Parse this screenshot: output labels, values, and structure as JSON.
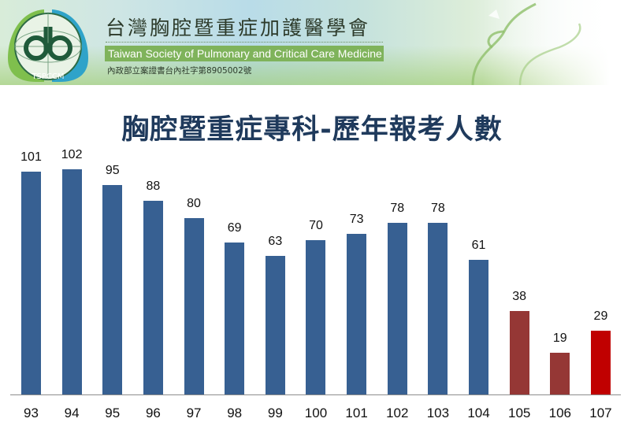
{
  "header": {
    "org_name_cn": "台灣胸腔暨重症加護醫學會",
    "org_name_en": "Taiwan Society of Pulmonary and Critical Care Medicine",
    "registration": "內政部立案證書台內社字第8905002號",
    "logo_text": "TSPCCM",
    "logo_colors": {
      "left_lung": "#7fbf4d",
      "right_lung": "#2fa3c9",
      "ring": "#1f5a3a"
    }
  },
  "chart_data": {
    "type": "bar",
    "title": "胸腔暨重症專科-歷年報考人數",
    "xlabel": "",
    "ylabel": "",
    "categories": [
      "93",
      "94",
      "95",
      "96",
      "97",
      "98",
      "99",
      "100",
      "101",
      "102",
      "103",
      "104",
      "105",
      "106",
      "107"
    ],
    "values": [
      101,
      102,
      95,
      88,
      80,
      69,
      63,
      70,
      73,
      78,
      78,
      61,
      38,
      19,
      29
    ],
    "colors": [
      "#376092",
      "#376092",
      "#376092",
      "#376092",
      "#376092",
      "#376092",
      "#376092",
      "#376092",
      "#376092",
      "#376092",
      "#376092",
      "#376092",
      "#953735",
      "#953735",
      "#c00000"
    ],
    "data_labels": true,
    "grid": false,
    "legend": null,
    "ylim": [
      0,
      102
    ]
  }
}
